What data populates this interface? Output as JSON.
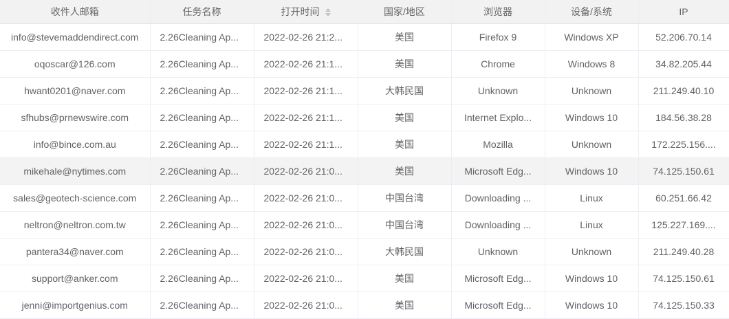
{
  "columns": [
    "收件人邮箱",
    "任务名称",
    "打开时间",
    "国家/地区",
    "浏览器",
    "设备/系统",
    "IP"
  ],
  "sort_icon": "sort-caret-icon",
  "rows": [
    [
      "info@stevemaddendirect.com",
      "2.26Cleaning Ap...",
      "2022-02-26 21:2...",
      "美国",
      "Firefox 9",
      "Windows XP",
      "52.206.70.14"
    ],
    [
      "oqoscar@126.com",
      "2.26Cleaning Ap...",
      "2022-02-26 21:1...",
      "美国",
      "Chrome",
      "Windows 8",
      "34.82.205.44"
    ],
    [
      "hwant0201@naver.com",
      "2.26Cleaning Ap...",
      "2022-02-26 21:1...",
      "大韩民国",
      "Unknown",
      "Unknown",
      "211.249.40.10"
    ],
    [
      "sfhubs@prnewswire.com",
      "2.26Cleaning Ap...",
      "2022-02-26 21:1...",
      "美国",
      "Internet Explo...",
      "Windows 10",
      "184.56.38.28"
    ],
    [
      "info@bince.com.au",
      "2.26Cleaning Ap...",
      "2022-02-26 21:1...",
      "美国",
      "Mozilla",
      "Unknown",
      "172.225.156...."
    ],
    [
      "mikehale@nytimes.com",
      "2.26Cleaning Ap...",
      "2022-02-26 21:0...",
      "美国",
      "Microsoft Edg...",
      "Windows 10",
      "74.125.150.61"
    ],
    [
      "sales@geotech-science.com",
      "2.26Cleaning Ap...",
      "2022-02-26 21:0...",
      "中国台湾",
      "Downloading ...",
      "Linux",
      "60.251.66.42"
    ],
    [
      "neltron@neltron.com.tw",
      "2.26Cleaning Ap...",
      "2022-02-26 21:0...",
      "中国台湾",
      "Downloading ...",
      "Linux",
      "125.227.169...."
    ],
    [
      "pantera34@naver.com",
      "2.26Cleaning Ap...",
      "2022-02-26 21:0...",
      "大韩民国",
      "Unknown",
      "Unknown",
      "211.249.40.28"
    ],
    [
      "support@anker.com",
      "2.26Cleaning Ap...",
      "2022-02-26 21:0...",
      "美国",
      "Microsoft Edg...",
      "Windows 10",
      "74.125.150.61"
    ],
    [
      "jenni@importgenius.com",
      "2.26Cleaning Ap...",
      "2022-02-26 21:0...",
      "美国",
      "Microsoft Edg...",
      "Windows 10",
      "74.125.150.33"
    ]
  ],
  "highlighted_row": 5
}
